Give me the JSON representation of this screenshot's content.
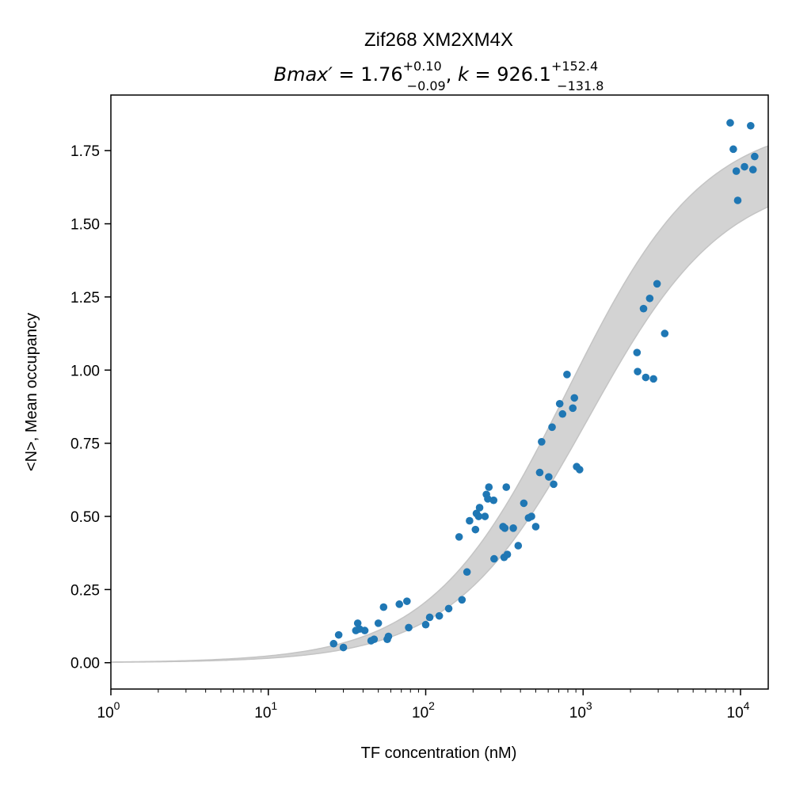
{
  "chart_data": {
    "type": "scatter",
    "title": "Zif268 XM2XM4X",
    "subtitle": {
      "bmax_label": "Bmax′",
      "bmax_value": "1.76",
      "bmax_plus": "+0.10",
      "bmax_minus": "−0.09",
      "k_label": "k",
      "k_value": "926.1",
      "k_plus": "+152.4",
      "k_minus": "−131.8"
    },
    "xlabel": "TF concentration (nM)",
    "ylabel": "<N>, Mean occupancy",
    "xscale": "log",
    "xlim": [
      1,
      15000
    ],
    "ylim": [
      -0.09,
      1.94
    ],
    "xticks": [
      {
        "value": 1,
        "base": "10",
        "exp": "0"
      },
      {
        "value": 10,
        "base": "10",
        "exp": "1"
      },
      {
        "value": 100,
        "base": "10",
        "exp": "2"
      },
      {
        "value": 1000,
        "base": "10",
        "exp": "3"
      },
      {
        "value": 10000,
        "base": "10",
        "exp": "4"
      }
    ],
    "yticks": [
      {
        "value": 0.0,
        "label": "0.00"
      },
      {
        "value": 0.25,
        "label": "0.25"
      },
      {
        "value": 0.5,
        "label": "0.50"
      },
      {
        "value": 0.75,
        "label": "0.75"
      },
      {
        "value": 1.0,
        "label": "1.00"
      },
      {
        "value": 1.25,
        "label": "1.25"
      },
      {
        "value": 1.5,
        "label": "1.50"
      },
      {
        "value": 1.75,
        "label": "1.75"
      }
    ],
    "grid": false,
    "legend": "none",
    "fit_band": {
      "model": "Bmax*x/(k+x)",
      "lower": {
        "bmax": 1.67,
        "k": 1078.5
      },
      "upper": {
        "bmax": 1.86,
        "k": 794.3
      },
      "color": "#d3d3d3"
    },
    "point_color": "#1f77b4",
    "points": [
      {
        "x": 26,
        "y": 0.065
      },
      {
        "x": 28,
        "y": 0.095
      },
      {
        "x": 30,
        "y": 0.052
      },
      {
        "x": 36,
        "y": 0.11
      },
      {
        "x": 37,
        "y": 0.135
      },
      {
        "x": 38,
        "y": 0.115
      },
      {
        "x": 41,
        "y": 0.11
      },
      {
        "x": 45,
        "y": 0.075
      },
      {
        "x": 47,
        "y": 0.08
      },
      {
        "x": 50,
        "y": 0.135
      },
      {
        "x": 54,
        "y": 0.19
      },
      {
        "x": 57,
        "y": 0.08
      },
      {
        "x": 58,
        "y": 0.09
      },
      {
        "x": 68,
        "y": 0.2
      },
      {
        "x": 76,
        "y": 0.21
      },
      {
        "x": 78,
        "y": 0.12
      },
      {
        "x": 100,
        "y": 0.13
      },
      {
        "x": 106,
        "y": 0.155
      },
      {
        "x": 122,
        "y": 0.16
      },
      {
        "x": 140,
        "y": 0.185
      },
      {
        "x": 163,
        "y": 0.43
      },
      {
        "x": 170,
        "y": 0.215
      },
      {
        "x": 183,
        "y": 0.31
      },
      {
        "x": 190,
        "y": 0.485
      },
      {
        "x": 207,
        "y": 0.455
      },
      {
        "x": 210,
        "y": 0.51
      },
      {
        "x": 217,
        "y": 0.5
      },
      {
        "x": 220,
        "y": 0.53
      },
      {
        "x": 238,
        "y": 0.5
      },
      {
        "x": 243,
        "y": 0.575
      },
      {
        "x": 248,
        "y": 0.56
      },
      {
        "x": 252,
        "y": 0.6
      },
      {
        "x": 270,
        "y": 0.555
      },
      {
        "x": 272,
        "y": 0.355
      },
      {
        "x": 310,
        "y": 0.465
      },
      {
        "x": 315,
        "y": 0.36
      },
      {
        "x": 318,
        "y": 0.46
      },
      {
        "x": 325,
        "y": 0.6
      },
      {
        "x": 330,
        "y": 0.37
      },
      {
        "x": 360,
        "y": 0.46
      },
      {
        "x": 387,
        "y": 0.4
      },
      {
        "x": 420,
        "y": 0.545
      },
      {
        "x": 450,
        "y": 0.495
      },
      {
        "x": 470,
        "y": 0.5
      },
      {
        "x": 500,
        "y": 0.465
      },
      {
        "x": 530,
        "y": 0.65
      },
      {
        "x": 545,
        "y": 0.755
      },
      {
        "x": 605,
        "y": 0.635
      },
      {
        "x": 635,
        "y": 0.805
      },
      {
        "x": 650,
        "y": 0.61
      },
      {
        "x": 710,
        "y": 0.885
      },
      {
        "x": 740,
        "y": 0.85
      },
      {
        "x": 790,
        "y": 0.985
      },
      {
        "x": 860,
        "y": 0.87
      },
      {
        "x": 880,
        "y": 0.905
      },
      {
        "x": 910,
        "y": 0.67
      },
      {
        "x": 950,
        "y": 0.66
      },
      {
        "x": 2200,
        "y": 1.06
      },
      {
        "x": 2220,
        "y": 0.995
      },
      {
        "x": 2420,
        "y": 1.21
      },
      {
        "x": 2500,
        "y": 0.975
      },
      {
        "x": 2650,
        "y": 1.245
      },
      {
        "x": 2800,
        "y": 0.97
      },
      {
        "x": 2950,
        "y": 1.295
      },
      {
        "x": 3300,
        "y": 1.125
      },
      {
        "x": 8600,
        "y": 1.845
      },
      {
        "x": 9000,
        "y": 1.755
      },
      {
        "x": 9400,
        "y": 1.68
      },
      {
        "x": 9600,
        "y": 1.58
      },
      {
        "x": 10600,
        "y": 1.695
      },
      {
        "x": 11600,
        "y": 1.835
      },
      {
        "x": 12000,
        "y": 1.685
      },
      {
        "x": 12300,
        "y": 1.73
      }
    ]
  }
}
